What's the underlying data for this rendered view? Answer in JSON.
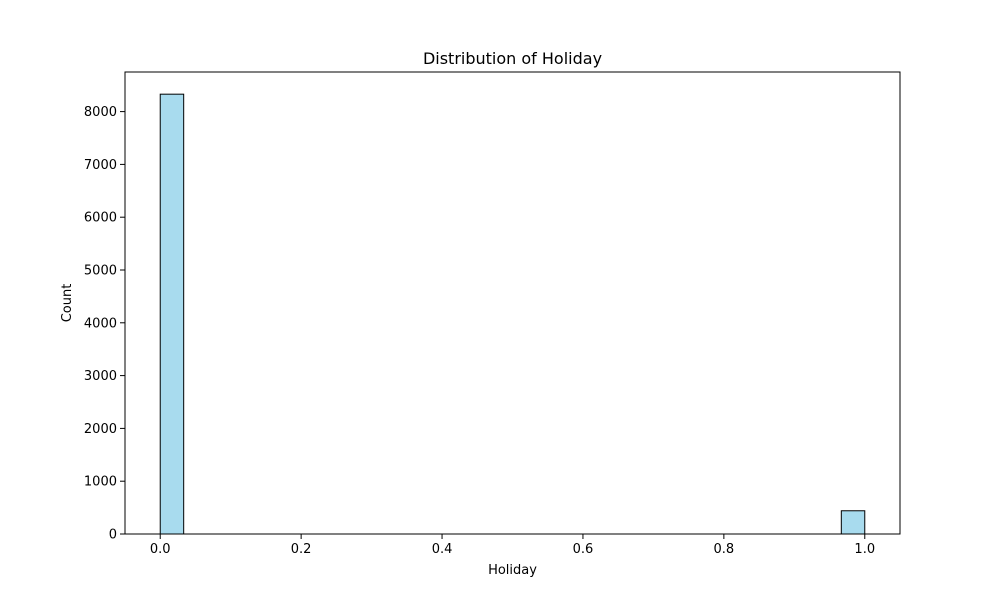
{
  "chart_data": {
    "type": "bar",
    "title": "Distribution of Holiday",
    "xlabel": "Holiday",
    "ylabel": "Count",
    "xlim": [
      -0.05,
      1.05
    ],
    "ylim": [
      0,
      8750
    ],
    "xticks": [
      0.0,
      0.2,
      0.4,
      0.6,
      0.8,
      1.0
    ],
    "xtick_labels": [
      "0.0",
      "0.2",
      "0.4",
      "0.6",
      "0.8",
      "1.0"
    ],
    "yticks": [
      0,
      1000,
      2000,
      3000,
      4000,
      5000,
      6000,
      7000,
      8000
    ],
    "ytick_labels": [
      "0",
      "1000",
      "2000",
      "3000",
      "4000",
      "5000",
      "6000",
      "7000",
      "8000"
    ],
    "bins": [
      {
        "x0": 0.0,
        "x1": 0.0333,
        "count": 8330
      },
      {
        "x0": 0.9667,
        "x1": 1.0,
        "count": 440
      }
    ],
    "bar_color": "#a8dbee",
    "edge_color": "#000000",
    "grid": false
  }
}
